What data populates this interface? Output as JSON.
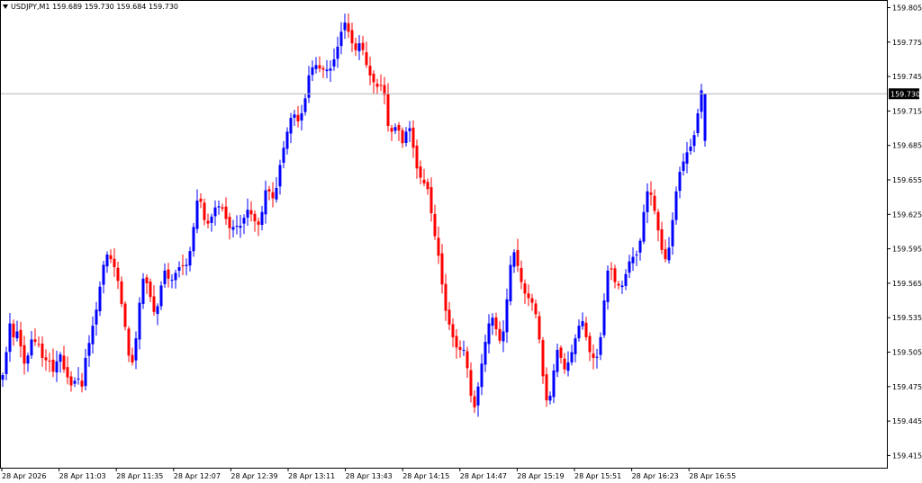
{
  "window": {
    "symbol_info": "USDJPY,M1  159.689 159.730 159.684 159.730",
    "menu_icon": "triangle-down-icon"
  },
  "chart_data": {
    "type": "candlestick",
    "symbol": "USDJPY",
    "timeframe": "M1",
    "ohlc_header": {
      "open": 159.689,
      "high": 159.73,
      "low": 159.684,
      "close": 159.73
    },
    "current_price": 159.73,
    "ylim": [
      159.4,
      159.81
    ],
    "y_ticks": [
      "159.805",
      "159.775",
      "159.745",
      "159.715",
      "159.685",
      "159.655",
      "159.625",
      "159.595",
      "159.565",
      "159.535",
      "159.505",
      "159.475",
      "159.445",
      "159.415"
    ],
    "x_ticks": [
      "28 Apr 2026",
      "28 Apr 11:03",
      "28 Apr 11:35",
      "28 Apr 12:07",
      "28 Apr 12:39",
      "28 Apr 13:11",
      "28 Apr 13:43",
      "28 Apr 14:15",
      "28 Apr 14:47",
      "28 Apr 15:19",
      "28 Apr 15:51",
      "28 Apr 16:23",
      "28 Apr 16:55"
    ],
    "colors": {
      "bull": "#0000ff",
      "bear": "#ff0000",
      "price_line": "#b4b4b4",
      "price_label_bg": "#000000",
      "price_label_text": "#ffffff",
      "axis": "#000000",
      "background": "#ffffff"
    },
    "close_series": [
      159.485,
      159.505,
      159.53,
      159.518,
      159.523,
      159.51,
      159.495,
      159.502,
      159.516,
      159.514,
      159.512,
      159.5,
      159.498,
      159.497,
      159.488,
      159.497,
      159.503,
      159.49,
      159.483,
      159.476,
      159.48,
      159.482,
      159.475,
      159.5,
      159.513,
      159.528,
      159.542,
      159.562,
      159.581,
      159.59,
      159.586,
      159.579,
      159.567,
      159.547,
      159.527,
      159.502,
      159.496,
      159.517,
      159.548,
      159.569,
      159.565,
      159.553,
      159.54,
      159.545,
      159.563,
      159.576,
      159.569,
      159.568,
      159.574,
      159.579,
      159.58,
      159.581,
      159.593,
      159.614,
      159.637,
      159.636,
      159.62,
      159.617,
      159.623,
      159.631,
      159.632,
      159.63,
      159.621,
      159.613,
      159.614,
      159.615,
      159.615,
      159.622,
      159.629,
      159.625,
      159.619,
      159.616,
      159.627,
      159.646,
      159.645,
      159.639,
      159.648,
      159.668,
      159.683,
      159.697,
      159.709,
      159.712,
      159.706,
      159.713,
      159.726,
      159.746,
      159.753,
      159.755,
      159.752,
      159.751,
      159.751,
      159.752,
      159.76,
      159.771,
      159.784,
      159.792,
      159.784,
      159.774,
      159.768,
      159.774,
      159.768,
      159.755,
      159.746,
      159.74,
      159.736,
      159.737,
      159.729,
      159.702,
      159.697,
      159.701,
      159.698,
      159.687,
      159.697,
      159.7,
      159.683,
      159.665,
      159.657,
      159.652,
      159.647,
      159.626,
      159.606,
      159.589,
      159.564,
      159.541,
      159.529,
      159.518,
      159.509,
      159.507,
      159.507,
      159.491,
      159.467,
      159.457,
      159.475,
      159.495,
      159.514,
      159.53,
      159.535,
      159.525,
      159.515,
      159.523,
      159.551,
      159.581,
      159.592,
      159.58,
      159.566,
      159.556,
      159.552,
      159.548,
      159.538,
      159.516,
      159.484,
      159.463,
      159.467,
      159.489,
      159.507,
      159.5,
      159.49,
      159.496,
      159.505,
      159.517,
      159.528,
      159.532,
      159.518,
      159.505,
      159.5,
      159.501,
      159.518,
      159.55,
      159.576,
      159.577,
      159.566,
      159.563,
      159.563,
      159.573,
      159.584,
      159.588,
      159.59,
      159.602,
      159.627,
      159.645,
      159.642,
      159.628,
      159.611,
      159.594,
      159.586,
      159.596,
      159.62,
      159.645,
      159.662,
      159.671,
      159.679,
      159.684,
      159.694,
      159.713,
      159.733,
      159.73
    ]
  }
}
